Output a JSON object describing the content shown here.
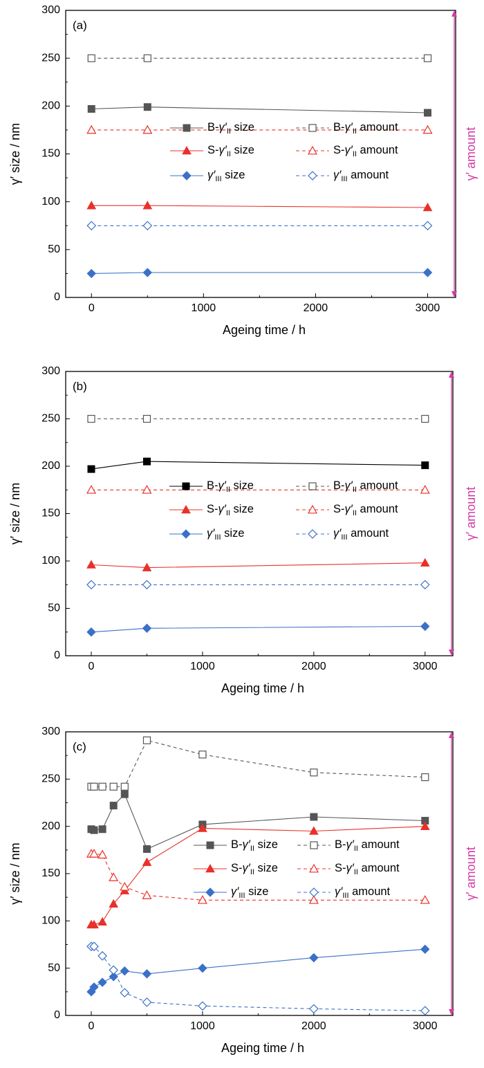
{
  "colors": {
    "black": "#000000",
    "grey": "#555555",
    "red": "#e8312a",
    "blue": "#3a70c8",
    "magenta": "#d43aa5"
  },
  "shared": {
    "ylabel": "γ′ size / nm",
    "xlabel": "Ageing time / h",
    "right_label": "γ′ amount",
    "x_ticks": [
      0,
      1000,
      2000,
      3000
    ],
    "y_ticks": [
      0,
      50,
      100,
      150,
      200,
      250,
      300
    ]
  },
  "chart_data": [
    {
      "type": "line",
      "panel": "(a)",
      "xlim": [
        -230,
        3250
      ],
      "ylim": [
        0,
        300
      ],
      "legend": [
        {
          "prefix": "B-",
          "sym": "γ′",
          "sub": "II",
          "suffix": " size"
        },
        {
          "prefix": "B-",
          "sym": "γ′",
          "sub": "II",
          "suffix": " amount"
        },
        {
          "prefix": "S-",
          "sym": "γ′",
          "sub": "II",
          "suffix": " size"
        },
        {
          "prefix": "S-",
          "sym": "γ′",
          "sub": "II",
          "suffix": " amount"
        },
        {
          "prefix": "",
          "sym": "γ′",
          "sub": "III",
          "suffix": " size"
        },
        {
          "prefix": "",
          "sym": "γ′",
          "sub": "III",
          "suffix": " amount"
        }
      ],
      "series": [
        {
          "color": "grey",
          "marker": "square",
          "filled": true,
          "dashed": false,
          "x": [
            0,
            500,
            3000
          ],
          "y": [
            197,
            199,
            193
          ]
        },
        {
          "color": "grey",
          "marker": "square",
          "filled": false,
          "dashed": true,
          "x": [
            0,
            500,
            3000
          ],
          "y": [
            250,
            250,
            250
          ]
        },
        {
          "color": "red",
          "marker": "triangle",
          "filled": true,
          "dashed": false,
          "x": [
            0,
            500,
            3000
          ],
          "y": [
            96,
            96,
            94
          ]
        },
        {
          "color": "red",
          "marker": "triangle",
          "filled": false,
          "dashed": true,
          "x": [
            0,
            500,
            3000
          ],
          "y": [
            175,
            175,
            175
          ]
        },
        {
          "color": "blue",
          "marker": "diamond",
          "filled": true,
          "dashed": false,
          "x": [
            0,
            500,
            3000
          ],
          "y": [
            25,
            26,
            26
          ]
        },
        {
          "color": "blue",
          "marker": "diamond",
          "filled": false,
          "dashed": true,
          "x": [
            0,
            500,
            3000
          ],
          "y": [
            75,
            75,
            75
          ]
        }
      ]
    },
    {
      "type": "line",
      "panel": "(b)",
      "xlim": [
        -230,
        3250
      ],
      "ylim": [
        0,
        300
      ],
      "legend": [
        {
          "prefix": "B-",
          "sym": "γ′",
          "sub": "II",
          "suffix": " size"
        },
        {
          "prefix": "B-",
          "sym": "γ′",
          "sub": "II",
          "suffix": " amount"
        },
        {
          "prefix": "S-",
          "sym": "γ′",
          "sub": "II",
          "suffix": " size"
        },
        {
          "prefix": "S-",
          "sym": "γ′",
          "sub": "II",
          "suffix": " amount"
        },
        {
          "prefix": "",
          "sym": "γ′",
          "sub": "III",
          "suffix": " size"
        },
        {
          "prefix": "",
          "sym": "γ′",
          "sub": "III",
          "suffix": " amount"
        }
      ],
      "series": [
        {
          "color": "black",
          "marker": "square",
          "filled": true,
          "dashed": false,
          "x": [
            0,
            500,
            3000
          ],
          "y": [
            197,
            205,
            201
          ]
        },
        {
          "color": "grey",
          "marker": "square",
          "filled": false,
          "dashed": true,
          "x": [
            0,
            500,
            3000
          ],
          "y": [
            250,
            250,
            250
          ]
        },
        {
          "color": "red",
          "marker": "triangle",
          "filled": true,
          "dashed": false,
          "x": [
            0,
            500,
            3000
          ],
          "y": [
            96,
            93,
            98
          ]
        },
        {
          "color": "red",
          "marker": "triangle",
          "filled": false,
          "dashed": true,
          "x": [
            0,
            500,
            3000
          ],
          "y": [
            175,
            175,
            175
          ]
        },
        {
          "color": "blue",
          "marker": "diamond",
          "filled": true,
          "dashed": false,
          "x": [
            0,
            500,
            3000
          ],
          "y": [
            25,
            29,
            31
          ]
        },
        {
          "color": "blue",
          "marker": "diamond",
          "filled": false,
          "dashed": true,
          "x": [
            0,
            500,
            3000
          ],
          "y": [
            75,
            75,
            75
          ]
        }
      ]
    },
    {
      "type": "line",
      "panel": "(c)",
      "xlim": [
        -230,
        3250
      ],
      "ylim": [
        0,
        300
      ],
      "legend": [
        {
          "prefix": "B-",
          "sym": "γ′",
          "sub": "II",
          "suffix": " size"
        },
        {
          "prefix": "B-",
          "sym": "γ′",
          "sub": "II",
          "suffix": " amount"
        },
        {
          "prefix": "S-",
          "sym": "γ′",
          "sub": "II",
          "suffix": " size"
        },
        {
          "prefix": "S-",
          "sym": "γ′",
          "sub": "II",
          "suffix": " amount"
        },
        {
          "prefix": "",
          "sym": "γ′",
          "sub": "III",
          "suffix": " size"
        },
        {
          "prefix": "",
          "sym": "γ′",
          "sub": "III",
          "suffix": " amount"
        }
      ],
      "series": [
        {
          "color": "grey",
          "marker": "square",
          "filled": true,
          "dashed": false,
          "x": [
            0,
            25,
            100,
            200,
            300,
            500,
            1000,
            2000,
            3000
          ],
          "y": [
            197,
            196,
            197,
            222,
            234,
            176,
            202,
            210,
            206
          ]
        },
        {
          "color": "grey",
          "marker": "square",
          "filled": false,
          "dashed": true,
          "x": [
            0,
            25,
            100,
            200,
            300,
            500,
            1000,
            2000,
            3000
          ],
          "y": [
            242,
            242,
            242,
            242,
            242,
            291,
            276,
            257,
            252
          ]
        },
        {
          "color": "red",
          "marker": "triangle",
          "filled": true,
          "dashed": false,
          "x": [
            0,
            25,
            100,
            200,
            300,
            500,
            1000,
            2000,
            3000
          ],
          "y": [
            96,
            96,
            99,
            118,
            132,
            162,
            198,
            195,
            200
          ]
        },
        {
          "color": "red",
          "marker": "triangle",
          "filled": false,
          "dashed": true,
          "x": [
            0,
            25,
            100,
            200,
            300,
            500,
            1000,
            2000,
            3000
          ],
          "y": [
            171,
            171,
            170,
            146,
            136,
            127,
            122,
            122,
            122
          ]
        },
        {
          "color": "blue",
          "marker": "diamond",
          "filled": true,
          "dashed": false,
          "x": [
            0,
            25,
            100,
            200,
            300,
            500,
            1000,
            2000,
            3000
          ],
          "y": [
            25,
            30,
            35,
            41,
            47,
            44,
            50,
            61,
            70
          ]
        },
        {
          "color": "blue",
          "marker": "diamond",
          "filled": false,
          "dashed": true,
          "x": [
            0,
            25,
            100,
            200,
            300,
            500,
            1000,
            2000,
            3000
          ],
          "y": [
            73,
            73,
            63,
            48,
            24,
            14,
            10,
            7,
            5
          ]
        }
      ]
    }
  ]
}
